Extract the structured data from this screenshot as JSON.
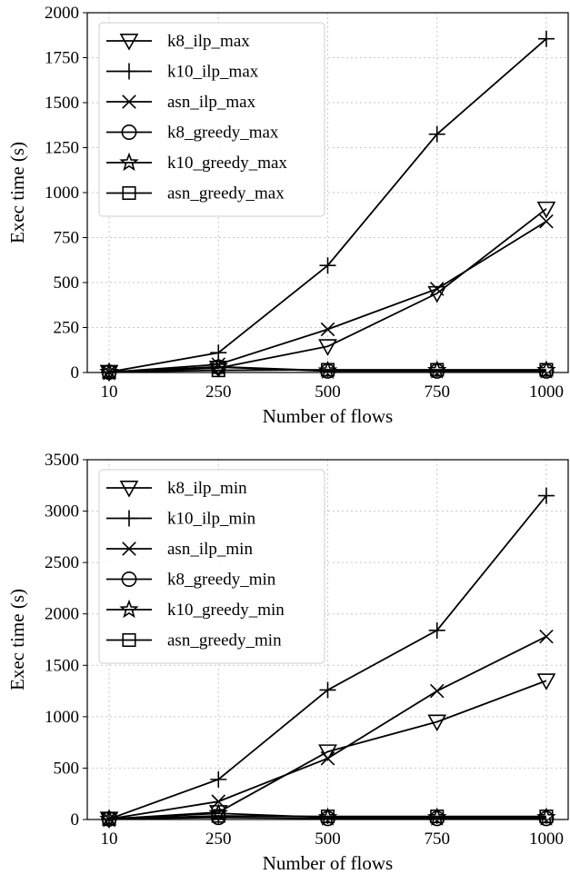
{
  "chart_data": [
    {
      "type": "line",
      "title": "",
      "xlabel": "Number of flows",
      "ylabel": "Exec time (s)",
      "categories": [
        "10",
        "250",
        "500",
        "750",
        "1000"
      ],
      "yticks": [
        "0",
        "250",
        "500",
        "750",
        "1000",
        "1250",
        "1500",
        "1750",
        "2000"
      ],
      "ylim": [
        0,
        2000
      ],
      "grid": true,
      "legend_position": "top-left",
      "series": [
        {
          "name": "k8_ilp_max",
          "marker": "triangle-down",
          "values": [
            2,
            25,
            145,
            440,
            910
          ]
        },
        {
          "name": "k10_ilp_max",
          "marker": "plus",
          "values": [
            3,
            110,
            595,
            1325,
            1855
          ]
        },
        {
          "name": "asn_ilp_max",
          "marker": "x",
          "values": [
            2,
            45,
            240,
            465,
            840
          ]
        },
        {
          "name": "k8_greedy_max",
          "marker": "circle",
          "values": [
            2,
            30,
            8,
            8,
            8
          ]
        },
        {
          "name": "k10_greedy_max",
          "marker": "star",
          "values": [
            2,
            32,
            10,
            12,
            12
          ]
        },
        {
          "name": "asn_greedy_max",
          "marker": "square",
          "values": [
            2,
            12,
            15,
            15,
            15
          ]
        }
      ]
    },
    {
      "type": "line",
      "title": "",
      "xlabel": "Number of flows",
      "ylabel": "Exec time (s)",
      "categories": [
        "10",
        "250",
        "500",
        "750",
        "1000"
      ],
      "yticks": [
        "0",
        "500",
        "1000",
        "1500",
        "2000",
        "2500",
        "3000",
        "3500"
      ],
      "ylim": [
        0,
        3500
      ],
      "grid": true,
      "legend_position": "top-left",
      "series": [
        {
          "name": "k8_ilp_min",
          "marker": "triangle-down",
          "values": [
            5,
            70,
            660,
            950,
            1350
          ]
        },
        {
          "name": "k10_ilp_min",
          "marker": "plus",
          "values": [
            5,
            390,
            1260,
            1840,
            3150
          ]
        },
        {
          "name": "asn_ilp_min",
          "marker": "x",
          "values": [
            5,
            175,
            595,
            1250,
            1780
          ]
        },
        {
          "name": "k8_greedy_min",
          "marker": "circle",
          "values": [
            5,
            20,
            10,
            10,
            10
          ]
        },
        {
          "name": "k10_greedy_min",
          "marker": "star",
          "values": [
            5,
            60,
            20,
            20,
            20
          ]
        },
        {
          "name": "asn_greedy_min",
          "marker": "square",
          "values": [
            5,
            35,
            30,
            30,
            30
          ]
        }
      ]
    }
  ]
}
